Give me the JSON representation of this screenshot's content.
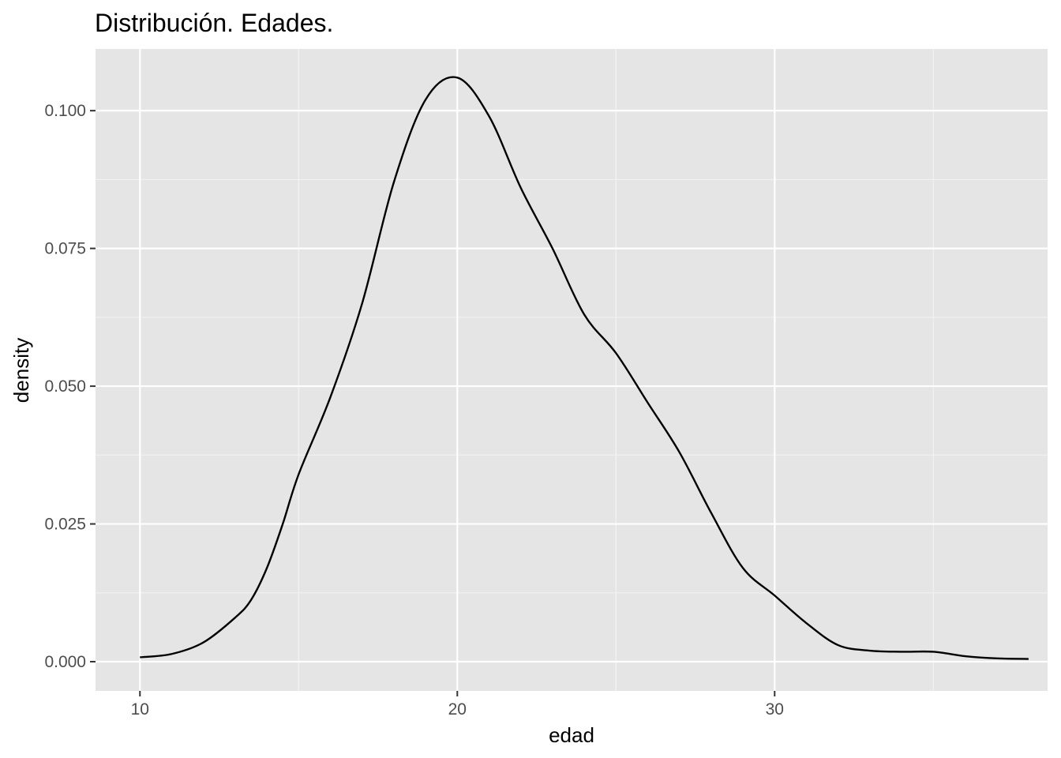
{
  "chart_data": {
    "type": "line",
    "title": "Distribución. Edades.",
    "xlabel": "edad",
    "ylabel": "density",
    "xlim": [
      8.6,
      38.6
    ],
    "ylim": [
      -0.0053,
      0.1112
    ],
    "x_ticks": [
      10,
      20,
      30
    ],
    "x_tick_labels": [
      "10",
      "20",
      "30"
    ],
    "y_ticks": [
      0,
      0.025,
      0.05,
      0.075,
      0.1
    ],
    "y_tick_labels": [
      "0.000",
      "0.025",
      "0.050",
      "0.075",
      "0.100"
    ],
    "grid": true,
    "legend": "none",
    "colors": {
      "panel_background": "#e5e5e5",
      "grid_major": "#ffffff",
      "grid_minor": "#f2f2f2",
      "line": "#000000",
      "tick_text": "#4d4d4d",
      "text": "#000000"
    },
    "series": [
      {
        "x": [
          10,
          11,
          12,
          13,
          13.5,
          14,
          14.5,
          15,
          16,
          17,
          18,
          19,
          20,
          21,
          22,
          23,
          24,
          25,
          26,
          27,
          28,
          29,
          30,
          31,
          32,
          33,
          34,
          35,
          36,
          37,
          38
        ],
        "y": [
          0.0008,
          0.0014,
          0.0035,
          0.008,
          0.0112,
          0.017,
          0.025,
          0.034,
          0.048,
          0.065,
          0.087,
          0.102,
          0.106,
          0.099,
          0.086,
          0.075,
          0.063,
          0.056,
          0.047,
          0.038,
          0.027,
          0.017,
          0.012,
          0.007,
          0.003,
          0.002,
          0.0018,
          0.0018,
          0.001,
          0.0006,
          0.0005
        ]
      }
    ]
  }
}
